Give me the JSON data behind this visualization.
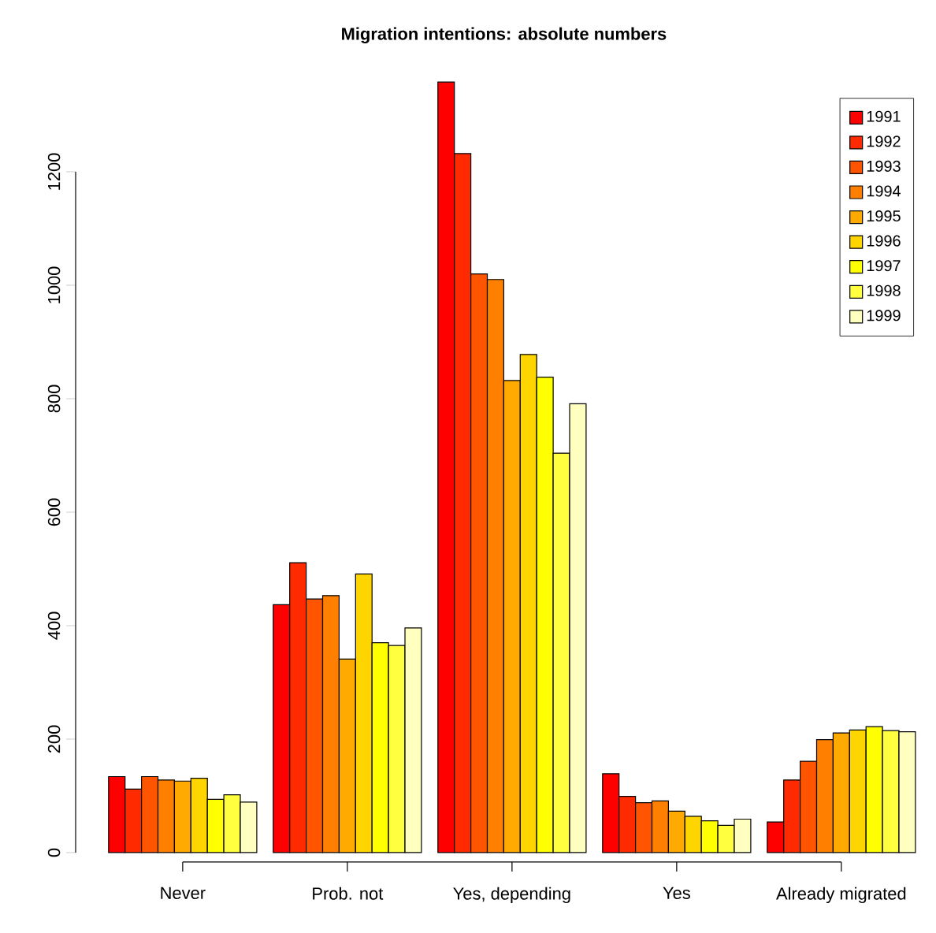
{
  "chart_data": {
    "type": "bar",
    "title": "Migration intentions: absolute numbers",
    "categories": [
      "Never",
      "Prob. not",
      "Yes, depending",
      "Yes",
      "Already migrated"
    ],
    "series": [
      {
        "name": "1991",
        "color": "#ff0000",
        "values": [
          134,
          437,
          1358,
          139,
          54
        ]
      },
      {
        "name": "1992",
        "color": "#ff2a00",
        "values": [
          112,
          511,
          1232,
          99,
          128
        ]
      },
      {
        "name": "1993",
        "color": "#ff5500",
        "values": [
          134,
          447,
          1020,
          88,
          161
        ]
      },
      {
        "name": "1994",
        "color": "#ff8000",
        "values": [
          128,
          453,
          1010,
          91,
          199
        ]
      },
      {
        "name": "1995",
        "color": "#ffaa00",
        "values": [
          126,
          341,
          832,
          73,
          211
        ]
      },
      {
        "name": "1996",
        "color": "#ffd500",
        "values": [
          131,
          491,
          878,
          64,
          216
        ]
      },
      {
        "name": "1997",
        "color": "#ffff00",
        "values": [
          94,
          370,
          838,
          56,
          222
        ]
      },
      {
        "name": "1998",
        "color": "#ffff40",
        "values": [
          102,
          365,
          704,
          48,
          215
        ]
      },
      {
        "name": "1999",
        "color": "#ffffbf",
        "values": [
          89,
          396,
          791,
          59,
          213
        ]
      }
    ],
    "ylim": [
      0,
      1360
    ],
    "yticks": [
      0,
      200,
      400,
      600,
      800,
      1000,
      1200
    ],
    "legend": "top right"
  }
}
